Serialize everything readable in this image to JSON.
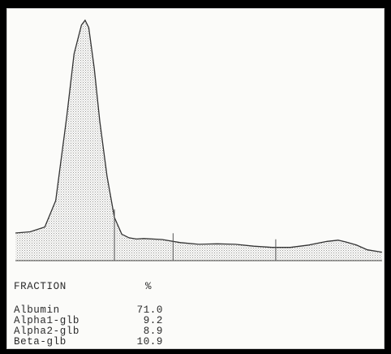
{
  "chart_data": {
    "type": "area",
    "title": "",
    "xlabel": "",
    "ylabel": "",
    "ylim": [
      0,
      100
    ],
    "grid": false,
    "x": [
      0,
      4,
      8,
      11,
      14,
      16,
      18,
      19,
      20,
      21.5,
      23,
      25,
      27,
      29,
      31,
      33,
      35,
      40,
      45,
      50,
      55,
      60,
      65,
      70,
      75,
      80,
      85,
      88,
      90,
      93,
      96,
      100
    ],
    "y": [
      11.5,
      12.0,
      14.0,
      25.0,
      60.0,
      86.0,
      98.0,
      100.0,
      97.0,
      80.0,
      58.0,
      35.0,
      18.0,
      11.0,
      9.5,
      9.0,
      9.2,
      8.8,
      7.5,
      6.8,
      7.0,
      6.8,
      6.0,
      5.5,
      5.5,
      6.5,
      8.0,
      8.5,
      7.8,
      6.5,
      4.5,
      3.5
    ],
    "fraction_dividers": [
      27,
      43,
      71
    ]
  },
  "fractions": {
    "header_label": "FRACTION",
    "header_unit": "%",
    "rows": [
      {
        "name": "Albumin",
        "value": "71.0"
      },
      {
        "name": "Alpha1-glb",
        "value": "9.2"
      },
      {
        "name": "Alpha2-glb",
        "value": "8.9"
      },
      {
        "name": "Beta-glb",
        "value": "10.9"
      }
    ]
  }
}
